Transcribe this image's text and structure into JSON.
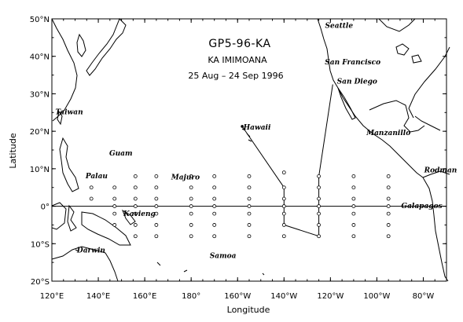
{
  "map": {
    "title": "GP5-96-KA",
    "ship": "KA IMIMOANA",
    "dates": "25 Aug – 24 Sep 1996",
    "xlabel": "Longitude",
    "ylabel": "Latitude",
    "xlim": [
      120,
      290
    ],
    "ylim": [
      -20,
      50
    ],
    "x_ticks": [
      {
        "value": 120,
        "label": "120°E"
      },
      {
        "value": 140,
        "label": "140°E"
      },
      {
        "value": 160,
        "label": "160°E"
      },
      {
        "value": 180,
        "label": "180°"
      },
      {
        "value": 200,
        "label": "160°W"
      },
      {
        "value": 220,
        "label": "140°W"
      },
      {
        "value": 240,
        "label": "120°W"
      },
      {
        "value": 260,
        "label": "100°W"
      },
      {
        "value": 280,
        "label": "80°W"
      }
    ],
    "y_ticks": [
      {
        "value": -20,
        "label": "20°S"
      },
      {
        "value": -10,
        "label": "10°S"
      },
      {
        "value": 0,
        "label": "0°"
      },
      {
        "value": 10,
        "label": "10°N"
      },
      {
        "value": 20,
        "label": "20°N"
      },
      {
        "value": 30,
        "label": "30°N"
      },
      {
        "value": 40,
        "label": "40°N"
      },
      {
        "value": 50,
        "label": "50°N"
      }
    ],
    "places": [
      {
        "name": "Seattle",
        "lon": 237.7,
        "lat": 47.6
      },
      {
        "name": "San Francisco",
        "lon": 237.6,
        "lat": 37.8
      },
      {
        "name": "San Diego",
        "lon": 242.8,
        "lat": 32.7
      },
      {
        "name": "Hawaii",
        "lon": 202.5,
        "lat": 20.5
      },
      {
        "name": "Manzanillo",
        "lon": 255.5,
        "lat": 19.0
      },
      {
        "name": "Taiwan",
        "lon": 121.5,
        "lat": 24.5
      },
      {
        "name": "Guam",
        "lon": 144.7,
        "lat": 13.5
      },
      {
        "name": "Palau",
        "lon": 134.5,
        "lat": 7.5
      },
      {
        "name": "Majuro",
        "lon": 171.4,
        "lat": 7.1
      },
      {
        "name": "Rodman",
        "lon": 280.4,
        "lat": 9.0
      },
      {
        "name": "Galapagos",
        "lon": 270.5,
        "lat": -0.5
      },
      {
        "name": "Kavieng",
        "lon": 150.8,
        "lat": -2.6
      },
      {
        "name": "Darwin",
        "lon": 130.8,
        "lat": -12.4
      },
      {
        "name": "Samoa",
        "lon": 188.0,
        "lat": -13.8
      }
    ],
    "stations": [
      {
        "lon": 137,
        "lats": [
          5,
          2
        ]
      },
      {
        "lon": 147,
        "lats": [
          5,
          2,
          0,
          -2,
          -5
        ]
      },
      {
        "lon": 156,
        "lats": [
          8,
          5,
          2,
          0,
          -2,
          -5,
          -8
        ]
      },
      {
        "lon": 165,
        "lats": [
          8,
          5,
          2,
          0,
          -2,
          -5,
          -8
        ]
      },
      {
        "lon": 180,
        "lats": [
          8,
          5,
          2,
          0,
          -2,
          -5,
          -8
        ]
      },
      {
        "lon": 190,
        "lats": [
          8,
          5,
          2,
          0,
          -2,
          -5,
          -8
        ]
      },
      {
        "lon": 205,
        "lats": [
          8,
          5,
          2,
          0,
          -2,
          -5,
          -8
        ]
      },
      {
        "lon": 220,
        "lats": [
          9,
          5,
          2,
          0,
          -2,
          -5,
          -8
        ]
      },
      {
        "lon": 235,
        "lats": [
          8,
          5,
          2,
          0,
          -2,
          -5,
          -8
        ]
      },
      {
        "lon": 250,
        "lats": [
          8,
          5,
          2,
          0,
          -2,
          -5,
          -8
        ]
      },
      {
        "lon": 265,
        "lats": [
          8,
          5,
          2,
          0,
          -2,
          -5,
          -8
        ]
      }
    ],
    "cruise_track": [
      [
        202,
        21.3
      ],
      [
        220,
        5
      ],
      [
        220,
        -5
      ],
      [
        235,
        -8
      ],
      [
        235,
        8
      ],
      [
        241,
        32.5
      ]
    ],
    "equator_lat": 0
  }
}
